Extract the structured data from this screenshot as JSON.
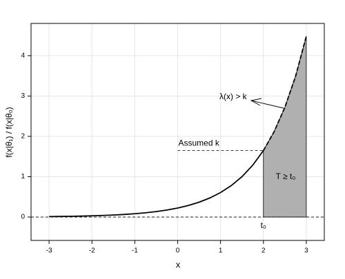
{
  "chart_data": {
    "type": "line",
    "x_label": "x",
    "y_label": "f(x|θ₁) / f(x|θ₀)",
    "xlim": [
      -3.42,
      3.42
    ],
    "ylim": [
      -0.58,
      4.8
    ],
    "xticks": [
      -3,
      -2,
      -1,
      0,
      1,
      2,
      3
    ],
    "yticks": [
      0,
      1,
      2,
      3,
      4
    ],
    "grid": true,
    "series": [
      {
        "color": "#000000",
        "dashed": false,
        "x": [
          -3,
          -2.75,
          -2.5,
          -2.25,
          -2,
          -1.75,
          -1.5,
          -1.25,
          -1,
          -0.75,
          -0.5,
          -0.25,
          0,
          0.25,
          0.5,
          0.75,
          1,
          1.25,
          1.5,
          1.75,
          2
        ],
        "values": [
          0.0111,
          0.0143,
          0.0183,
          0.0235,
          0.0302,
          0.0388,
          0.0498,
          0.0639,
          0.0821,
          0.1054,
          0.1353,
          0.1738,
          0.2231,
          0.2865,
          0.3679,
          0.4724,
          0.6065,
          0.7788,
          1,
          1.284,
          1.6487
        ]
      },
      {
        "color": "#000000",
        "dashed": true,
        "fill": "#b0b0b0",
        "x": [
          2,
          2.25,
          2.5,
          2.75,
          3
        ],
        "values": [
          1.6487,
          2.117,
          2.7183,
          3.4903,
          4.4817
        ]
      }
    ],
    "k": 1.6487,
    "k_label": "Assumed k",
    "k_from": 0,
    "k_to": 2,
    "t0": 2,
    "t0_label": "t₀",
    "region_label": "T ≥ t₀",
    "curve_label": "λ(x) > k"
  }
}
